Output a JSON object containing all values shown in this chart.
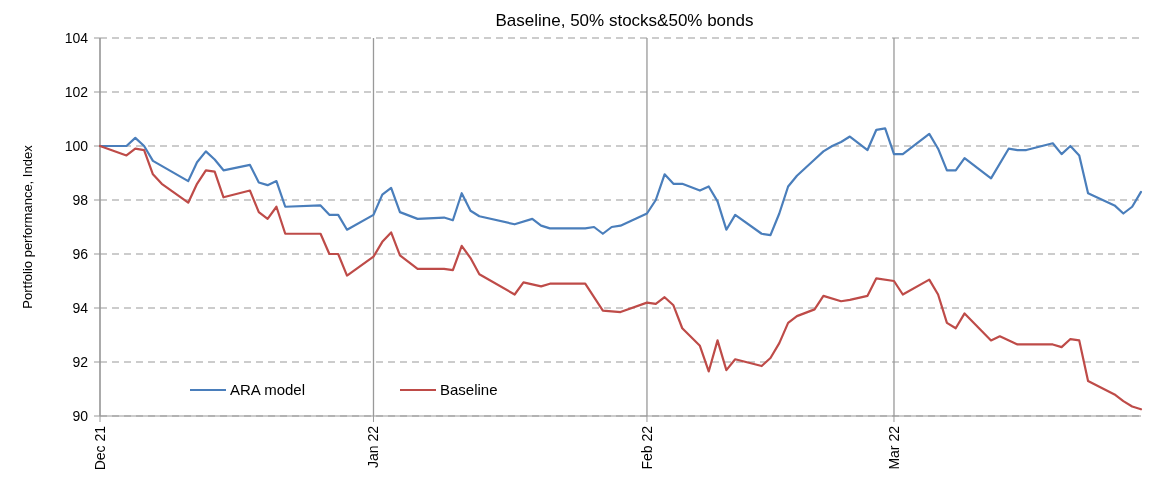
{
  "chart_data": {
    "type": "line",
    "title": "Baseline, 50% stocks&50% bonds",
    "ylabel": "Portfolio performance, Index",
    "xlim": [
      "2021-12-01",
      "2022-03-29"
    ],
    "xticks": [
      {
        "value": "2021-12-01",
        "label": "Dec 21"
      },
      {
        "value": "2022-01-01",
        "label": "Jan 22"
      },
      {
        "value": "2022-02-01",
        "label": "Feb 22"
      },
      {
        "value": "2022-03-01",
        "label": "Mar 22"
      }
    ],
    "ylim": [
      90,
      104
    ],
    "yticks": [
      90,
      92,
      94,
      96,
      98,
      100,
      102,
      104
    ],
    "grid": true,
    "legend": "bottom left",
    "marker": "none",
    "line_style": "solid",
    "series": [
      {
        "name": "ARA model",
        "color": "#4a7ebb",
        "x": [
          "2021-12-01",
          "2021-12-04",
          "2021-12-05",
          "2021-12-06",
          "2021-12-07",
          "2021-12-11",
          "2021-12-12",
          "2021-12-13",
          "2021-12-14",
          "2021-12-15",
          "2021-12-18",
          "2021-12-19",
          "2021-12-20",
          "2021-12-21",
          "2021-12-22",
          "2021-12-26",
          "2021-12-27",
          "2021-12-28",
          "2021-12-29",
          "2022-01-01",
          "2022-01-02",
          "2022-01-03",
          "2022-01-04",
          "2022-01-06",
          "2022-01-09",
          "2022-01-10",
          "2022-01-11",
          "2022-01-12",
          "2022-01-13",
          "2022-01-17",
          "2022-01-19",
          "2022-01-20",
          "2022-01-21",
          "2022-01-25",
          "2022-01-26",
          "2022-01-27",
          "2022-01-28",
          "2022-01-29",
          "2022-02-01",
          "2022-02-02",
          "2022-02-03",
          "2022-02-04",
          "2022-02-05",
          "2022-02-07",
          "2022-02-08",
          "2022-02-09",
          "2022-02-10",
          "2022-02-11",
          "2022-02-14",
          "2022-02-15",
          "2022-02-16",
          "2022-02-17",
          "2022-02-18",
          "2022-02-20",
          "2022-02-21",
          "2022-02-22",
          "2022-02-23",
          "2022-02-24",
          "2022-02-26",
          "2022-02-27",
          "2022-02-28",
          "2022-03-01",
          "2022-03-02",
          "2022-03-05",
          "2022-03-06",
          "2022-03-07",
          "2022-03-08",
          "2022-03-09",
          "2022-03-12",
          "2022-03-14",
          "2022-03-15",
          "2022-03-16",
          "2022-03-19",
          "2022-03-20",
          "2022-03-21",
          "2022-03-22",
          "2022-03-23",
          "2022-03-26",
          "2022-03-27",
          "2022-03-28",
          "2022-03-29"
        ],
        "values": [
          100,
          100,
          100.3,
          100,
          99.45,
          98.7,
          99.4,
          99.8,
          99.5,
          99.1,
          99.3,
          98.65,
          98.55,
          98.7,
          97.75,
          97.8,
          97.45,
          97.45,
          96.9,
          97.45,
          98.2,
          98.45,
          97.55,
          97.3,
          97.35,
          97.25,
          98.25,
          97.6,
          97.4,
          97.1,
          97.3,
          97.05,
          96.95,
          96.95,
          97,
          96.75,
          97,
          97.05,
          97.5,
          98,
          98.95,
          98.6,
          98.6,
          98.35,
          98.5,
          97.95,
          96.9,
          97.45,
          96.75,
          96.7,
          97.5,
          98.5,
          98.9,
          99.5,
          99.8,
          100,
          100.15,
          100.35,
          99.85,
          100.6,
          100.65,
          99.7,
          99.7,
          100.45,
          99.9,
          99.1,
          99.1,
          99.55,
          98.8,
          99.9,
          99.85,
          99.85,
          100.1,
          99.7,
          100,
          99.65,
          98.25,
          97.8,
          97.5,
          97.75,
          98.3
        ]
      },
      {
        "name": "Baseline",
        "color": "#be4b48",
        "x": [
          "2021-12-01",
          "2021-12-04",
          "2021-12-05",
          "2021-12-06",
          "2021-12-07",
          "2021-12-08",
          "2021-12-11",
          "2021-12-12",
          "2021-12-13",
          "2021-12-14",
          "2021-12-15",
          "2021-12-18",
          "2021-12-19",
          "2021-12-20",
          "2021-12-21",
          "2021-12-22",
          "2021-12-26",
          "2021-12-27",
          "2021-12-28",
          "2021-12-29",
          "2022-01-01",
          "2022-01-02",
          "2022-01-03",
          "2022-01-04",
          "2022-01-06",
          "2022-01-09",
          "2022-01-10",
          "2022-01-11",
          "2022-01-12",
          "2022-01-13",
          "2022-01-17",
          "2022-01-18",
          "2022-01-20",
          "2022-01-21",
          "2022-01-25",
          "2022-01-27",
          "2022-01-29",
          "2022-02-01",
          "2022-02-02",
          "2022-02-03",
          "2022-02-04",
          "2022-02-05",
          "2022-02-07",
          "2022-02-08",
          "2022-02-09",
          "2022-02-10",
          "2022-02-11",
          "2022-02-14",
          "2022-02-15",
          "2022-02-16",
          "2022-02-17",
          "2022-02-18",
          "2022-02-20",
          "2022-02-21",
          "2022-02-23",
          "2022-02-24",
          "2022-02-26",
          "2022-02-27",
          "2022-03-01",
          "2022-03-02",
          "2022-03-05",
          "2022-03-06",
          "2022-03-07",
          "2022-03-08",
          "2022-03-09",
          "2022-03-12",
          "2022-03-13",
          "2022-03-15",
          "2022-03-19",
          "2022-03-20",
          "2022-03-21",
          "2022-03-22",
          "2022-03-23",
          "2022-03-26",
          "2022-03-27",
          "2022-03-28",
          "2022-03-29"
        ],
        "values": [
          100,
          99.65,
          99.9,
          99.85,
          98.95,
          98.6,
          97.9,
          98.6,
          99.1,
          99.05,
          98.1,
          98.35,
          97.55,
          97.3,
          97.75,
          96.75,
          96.75,
          96,
          96,
          95.2,
          95.9,
          96.45,
          96.8,
          95.95,
          95.45,
          95.45,
          95.4,
          96.3,
          95.85,
          95.25,
          94.5,
          94.95,
          94.8,
          94.9,
          94.9,
          93.9,
          93.85,
          94.2,
          94.15,
          94.4,
          94.1,
          93.25,
          92.6,
          91.65,
          92.8,
          91.7,
          92.1,
          91.85,
          92.15,
          92.7,
          93.45,
          93.7,
          93.95,
          94.45,
          94.25,
          94.3,
          94.45,
          95.1,
          95,
          94.5,
          95.05,
          94.5,
          93.45,
          93.25,
          93.8,
          92.8,
          92.95,
          92.65,
          92.65,
          92.55,
          92.85,
          92.8,
          91.3,
          90.8,
          90.55,
          90.35,
          90.25
        ]
      }
    ]
  }
}
